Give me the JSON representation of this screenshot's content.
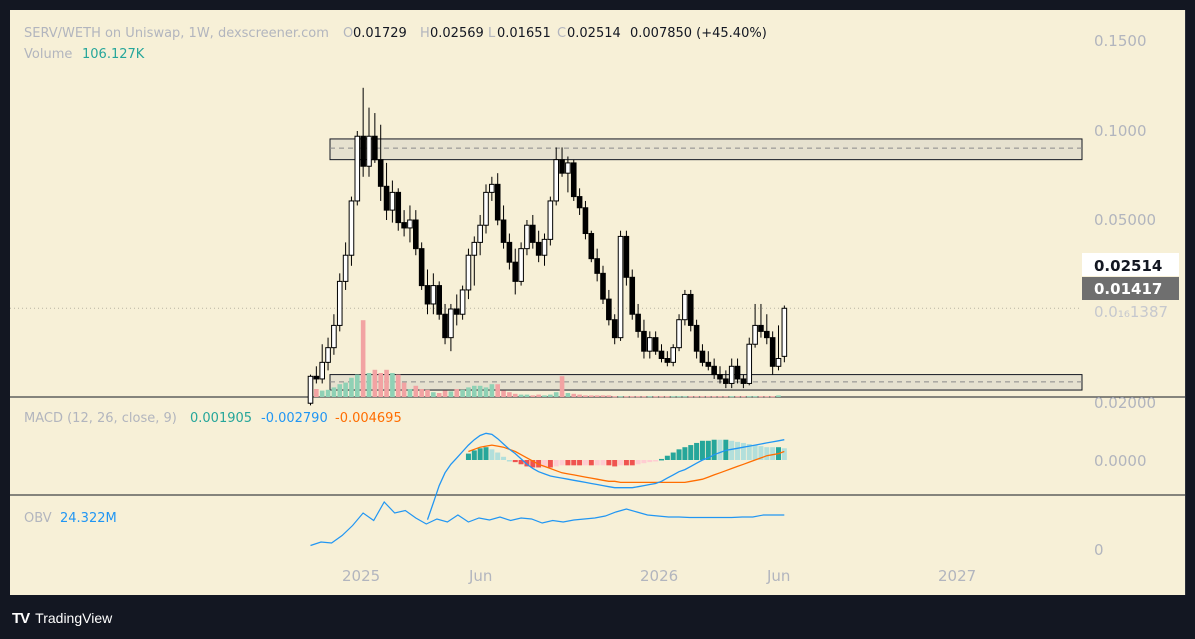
{
  "header": {
    "symbol": "SERV/WETH on Uniswap, 1W, dexscreener.com",
    "o_label": "O",
    "o_value": "0.01729",
    "h_label": "H",
    "h_value": "0.02569",
    "l_label": "L",
    "l_value": "0.01651",
    "c_label": "C",
    "c_value": "0.02514",
    "change": "0.007850 (+45.40%)",
    "volume_label": "Volume",
    "volume_value": "106.127K"
  },
  "macd": {
    "label": "MACD (12, 26, close, 9)",
    "v1": "0.001905",
    "v2": "-0.002790",
    "v3": "-0.004695"
  },
  "obv": {
    "label": "OBV",
    "value": "24.322M"
  },
  "price_scale": [
    "0.1500",
    "0.1000",
    "0.05000",
    "0.02000"
  ],
  "macd_scale": "0.0000",
  "obv_scale": "0",
  "last_price_label": "0.02514",
  "level_label": "0.01417",
  "faded_label": "0.0₁₆1387",
  "time_labels": [
    "2025",
    "Jun",
    "2026",
    "Jun",
    "2027"
  ],
  "brand": "TradingView",
  "colors": {
    "background": "#f7f0d7",
    "up_volume": "#8fd1b5",
    "down_volume": "#f2a3a3",
    "macd_line": "#2196f3",
    "signal_line": "#ff6d00",
    "obv_line": "#2196f3",
    "hist_up_strong": "#26a69a",
    "hist_up_weak": "#b2dfdb",
    "hist_down_strong": "#ef5350",
    "hist_down_weak": "#ffcdd2"
  },
  "chart_data": {
    "type": "candlestick",
    "timeframe": "1W",
    "price_axis": {
      "scale": "log",
      "ticks": [
        0.15,
        0.1,
        0.05,
        0.02
      ]
    },
    "zones": [
      {
        "name": "resistance",
        "low": 0.08,
        "high": 0.094,
        "mid": 0.0875
      },
      {
        "name": "support",
        "low": 0.0133,
        "high": 0.015,
        "mid": 0.01417
      }
    ],
    "candles": [
      [
        0.012,
        0.015,
        0.0118,
        0.0148
      ],
      [
        0.0148,
        0.016,
        0.014,
        0.0145
      ],
      [
        0.0145,
        0.019,
        0.014,
        0.0165
      ],
      [
        0.0165,
        0.02,
        0.0155,
        0.0185
      ],
      [
        0.0185,
        0.024,
        0.0175,
        0.022
      ],
      [
        0.022,
        0.033,
        0.021,
        0.031
      ],
      [
        0.031,
        0.042,
        0.029,
        0.038
      ],
      [
        0.038,
        0.06,
        0.035,
        0.058
      ],
      [
        0.058,
        0.1,
        0.056,
        0.096
      ],
      [
        0.096,
        0.14,
        0.07,
        0.076
      ],
      [
        0.076,
        0.12,
        0.07,
        0.096
      ],
      [
        0.096,
        0.115,
        0.078,
        0.08
      ],
      [
        0.08,
        0.105,
        0.058,
        0.065
      ],
      [
        0.065,
        0.078,
        0.05,
        0.054
      ],
      [
        0.054,
        0.068,
        0.049,
        0.062
      ],
      [
        0.062,
        0.064,
        0.046,
        0.049
      ],
      [
        0.049,
        0.054,
        0.044,
        0.047
      ],
      [
        0.047,
        0.056,
        0.042,
        0.05
      ],
      [
        0.05,
        0.054,
        0.038,
        0.04
      ],
      [
        0.04,
        0.042,
        0.029,
        0.03
      ],
      [
        0.03,
        0.034,
        0.024,
        0.026
      ],
      [
        0.026,
        0.033,
        0.024,
        0.03
      ],
      [
        0.03,
        0.031,
        0.023,
        0.024
      ],
      [
        0.024,
        0.026,
        0.019,
        0.02
      ],
      [
        0.02,
        0.026,
        0.018,
        0.025
      ],
      [
        0.025,
        0.028,
        0.022,
        0.024
      ],
      [
        0.024,
        0.03,
        0.023,
        0.029
      ],
      [
        0.029,
        0.04,
        0.027,
        0.038
      ],
      [
        0.038,
        0.044,
        0.03,
        0.042
      ],
      [
        0.042,
        0.052,
        0.038,
        0.048
      ],
      [
        0.048,
        0.066,
        0.045,
        0.062
      ],
      [
        0.062,
        0.07,
        0.058,
        0.066
      ],
      [
        0.066,
        0.072,
        0.048,
        0.05
      ],
      [
        0.05,
        0.056,
        0.04,
        0.042
      ],
      [
        0.042,
        0.045,
        0.034,
        0.036
      ],
      [
        0.036,
        0.04,
        0.028,
        0.031
      ],
      [
        0.031,
        0.042,
        0.03,
        0.04
      ],
      [
        0.04,
        0.05,
        0.038,
        0.048
      ],
      [
        0.048,
        0.052,
        0.04,
        0.042
      ],
      [
        0.042,
        0.046,
        0.036,
        0.038
      ],
      [
        0.038,
        0.045,
        0.035,
        0.043
      ],
      [
        0.043,
        0.06,
        0.041,
        0.058
      ],
      [
        0.058,
        0.088,
        0.056,
        0.08
      ],
      [
        0.08,
        0.088,
        0.07,
        0.072
      ],
      [
        0.072,
        0.082,
        0.062,
        0.078
      ],
      [
        0.078,
        0.08,
        0.058,
        0.06
      ],
      [
        0.06,
        0.064,
        0.052,
        0.055
      ],
      [
        0.055,
        0.058,
        0.043,
        0.045
      ],
      [
        0.045,
        0.046,
        0.036,
        0.037
      ],
      [
        0.037,
        0.04,
        0.031,
        0.033
      ],
      [
        0.033,
        0.035,
        0.026,
        0.027
      ],
      [
        0.027,
        0.029,
        0.022,
        0.023
      ],
      [
        0.023,
        0.024,
        0.019,
        0.02
      ],
      [
        0.02,
        0.046,
        0.0195,
        0.044
      ],
      [
        0.044,
        0.046,
        0.03,
        0.032
      ],
      [
        0.032,
        0.034,
        0.023,
        0.024
      ],
      [
        0.024,
        0.026,
        0.02,
        0.021
      ],
      [
        0.021,
        0.023,
        0.017,
        0.018
      ],
      [
        0.018,
        0.021,
        0.017,
        0.02
      ],
      [
        0.02,
        0.021,
        0.0175,
        0.018
      ],
      [
        0.018,
        0.019,
        0.0165,
        0.017
      ],
      [
        0.017,
        0.018,
        0.016,
        0.0165
      ],
      [
        0.0165,
        0.019,
        0.016,
        0.0185
      ],
      [
        0.0185,
        0.024,
        0.018,
        0.023
      ],
      [
        0.023,
        0.029,
        0.022,
        0.028
      ],
      [
        0.028,
        0.029,
        0.021,
        0.022
      ],
      [
        0.022,
        0.023,
        0.017,
        0.018
      ],
      [
        0.018,
        0.019,
        0.016,
        0.0165
      ],
      [
        0.0165,
        0.018,
        0.0155,
        0.016
      ],
      [
        0.016,
        0.017,
        0.0145,
        0.015
      ],
      [
        0.015,
        0.016,
        0.014,
        0.0145
      ],
      [
        0.0145,
        0.0155,
        0.0135,
        0.014
      ],
      [
        0.014,
        0.017,
        0.0135,
        0.016
      ],
      [
        0.016,
        0.017,
        0.014,
        0.0145
      ],
      [
        0.0145,
        0.015,
        0.0135,
        0.014
      ],
      [
        0.014,
        0.02,
        0.0138,
        0.019
      ],
      [
        0.019,
        0.026,
        0.0185,
        0.022
      ],
      [
        0.022,
        0.026,
        0.02,
        0.021
      ],
      [
        0.021,
        0.024,
        0.019,
        0.02
      ],
      [
        0.02,
        0.021,
        0.015,
        0.016
      ],
      [
        0.016,
        0.022,
        0.0155,
        0.017
      ],
      [
        0.01729,
        0.02569,
        0.01651,
        0.02514
      ]
    ],
    "volume_relative": [
      0.2,
      0.1,
      0.08,
      0.09,
      0.12,
      0.16,
      0.18,
      0.24,
      0.28,
      0.96,
      0.3,
      0.34,
      0.3,
      0.34,
      0.3,
      0.28,
      0.18,
      0.1,
      0.14,
      0.1,
      0.09,
      0.06,
      0.05,
      0.08,
      0.07,
      0.1,
      0.09,
      0.12,
      0.14,
      0.14,
      0.12,
      0.16,
      0.16,
      0.08,
      0.06,
      0.04,
      0.03,
      0.03,
      0.02,
      0.03,
      0.02,
      0.03,
      0.06,
      0.26,
      0.05,
      0.04,
      0.03,
      0.02,
      0.02,
      0.02,
      0.02,
      0.02,
      0.01,
      0.01,
      0.01,
      0.01,
      0.01,
      0.01,
      0.01,
      0.01,
      0.01,
      0.01,
      0.01,
      0.01,
      0.01,
      0.01,
      0.01,
      0.01,
      0.01,
      0.01,
      0.01,
      0.01,
      0.01,
      0.01,
      0.01,
      0.01,
      0.01,
      0.01,
      0.01,
      0.01,
      0.02
    ],
    "macd": {
      "macd_line": [
        -0.0056,
        -0.004,
        -0.0024,
        -0.0012,
        -0.0004,
        0.0002,
        0.0008,
        0.0014,
        0.0019,
        0.0023,
        0.0025,
        0.0024,
        0.002,
        0.0015,
        0.001,
        0.0006,
        0.0001,
        -0.0004,
        -0.0008,
        -0.0011,
        -0.0013,
        -0.0015,
        -0.0016,
        -0.0017,
        -0.0018,
        -0.0019,
        -0.002,
        -0.0021,
        -0.0022,
        -0.0023,
        -0.0024,
        -0.0025,
        -0.0026,
        -0.0026,
        -0.0026,
        -0.0026,
        -0.0025,
        -0.0024,
        -0.0023,
        -0.0022,
        -0.002,
        -0.0017,
        -0.0014,
        -0.0011,
        -0.0009,
        -0.0006,
        -0.0003,
        0.0,
        0.0002,
        0.0005,
        0.0007,
        0.0009,
        0.001,
        0.0011,
        0.0012,
        0.0013,
        0.0014,
        0.0015,
        0.0016,
        0.0017,
        0.0018,
        0.0019
      ],
      "signal_line": [
        -0.0003,
        -0.0002,
        -0.0001,
        0.0,
        0.0002,
        0.0004,
        0.0006,
        0.0008,
        0.001,
        0.0012,
        0.0013,
        0.0014,
        0.0013,
        0.0012,
        0.001,
        0.0008,
        0.0005,
        0.0002,
        -0.0001,
        -0.0004,
        -0.0006,
        -0.0008,
        -0.001,
        -0.0012,
        -0.0013,
        -0.0014,
        -0.0015,
        -0.0016,
        -0.0017,
        -0.0018,
        -0.0019,
        -0.002,
        -0.002,
        -0.0021,
        -0.0021,
        -0.0021,
        -0.0021,
        -0.0021,
        -0.0021,
        -0.0021,
        -0.0021,
        -0.0021,
        -0.0021,
        -0.0021,
        -0.0021,
        -0.002,
        -0.0019,
        -0.0018,
        -0.0016,
        -0.0014,
        -0.0012,
        -0.001,
        -0.0008,
        -0.0006,
        -0.0004,
        -0.0002,
        0.0,
        0.0002,
        0.0004,
        0.0005,
        0.0006,
        0.0008
      ],
      "macd_start_index": 20,
      "signal_start_index": 27
    },
    "obv_relative": [
      0.05,
      0.12,
      0.1,
      0.25,
      0.45,
      0.7,
      0.55,
      0.92,
      0.7,
      0.75,
      0.6,
      0.48,
      0.58,
      0.52,
      0.66,
      0.52,
      0.6,
      0.56,
      0.62,
      0.55,
      0.6,
      0.58,
      0.5,
      0.55,
      0.52,
      0.56,
      0.58,
      0.6,
      0.64,
      0.72,
      0.78,
      0.72,
      0.66,
      0.64,
      0.62,
      0.62,
      0.61,
      0.61,
      0.61,
      0.61,
      0.61,
      0.62,
      0.62,
      0.66,
      0.66,
      0.66
    ],
    "x_axis_ticks": [
      "2025",
      "Jun",
      "2026",
      "Jun",
      "2027"
    ]
  }
}
